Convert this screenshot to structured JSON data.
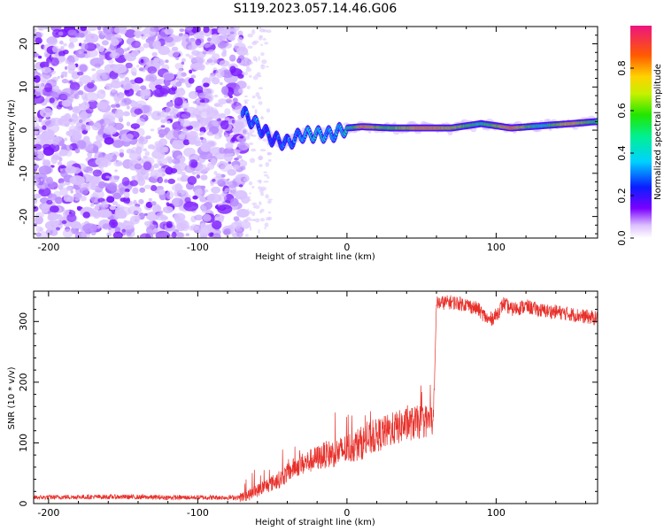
{
  "title": "S119.2023.057.14.46.G06",
  "chart_data": [
    {
      "type": "heatmap",
      "xlabel": "Height of straight line (km)",
      "ylabel": "Frequency (Hz)",
      "xlim": [
        -210,
        168
      ],
      "ylim": [
        -25,
        24
      ],
      "x_ticks": [
        -200,
        -100,
        0,
        100
      ],
      "x_tick_labels": [
        "-200",
        "-100",
        "0",
        "100"
      ],
      "y_ticks": [
        -20,
        -10,
        0,
        10,
        20
      ],
      "y_tick_labels": [
        "-20",
        "-10",
        "0",
        "10",
        "20"
      ],
      "colorbar": {
        "label": "Normalized spectral amplitude",
        "range": [
          0,
          1
        ],
        "ticks": [
          0.0,
          0.2,
          0.4,
          0.6,
          0.8
        ],
        "tick_labels": [
          "0.0",
          "0.2",
          "0.4",
          "0.6",
          "0.8"
        ]
      },
      "noise_region": {
        "x_range": [
          -210,
          -68
        ],
        "freq_range": [
          -25,
          24
        ],
        "amplitude": "low (0.0-0.1)"
      },
      "signal_track": [
        {
          "x": -70,
          "f": 4,
          "a": 0.35
        },
        {
          "x": -60,
          "f": 1,
          "a": 0.4
        },
        {
          "x": -50,
          "f": -2,
          "a": 0.3
        },
        {
          "x": -40,
          "f": -3,
          "a": 0.35
        },
        {
          "x": -30,
          "f": -1,
          "a": 0.45
        },
        {
          "x": -20,
          "f": -1,
          "a": 0.5
        },
        {
          "x": -10,
          "f": -1,
          "a": 0.45
        },
        {
          "x": 0,
          "f": 0.5,
          "a": 0.55
        },
        {
          "x": 10,
          "f": 0.8,
          "a": 0.95
        },
        {
          "x": 30,
          "f": 0.5,
          "a": 0.7
        },
        {
          "x": 50,
          "f": 0.5,
          "a": 0.98
        },
        {
          "x": 70,
          "f": 0.5,
          "a": 0.85
        },
        {
          "x": 90,
          "f": 1.5,
          "a": 0.6
        },
        {
          "x": 110,
          "f": 0.5,
          "a": 0.98
        },
        {
          "x": 130,
          "f": 1,
          "a": 0.55
        },
        {
          "x": 150,
          "f": 1.5,
          "a": 0.95
        },
        {
          "x": 168,
          "f": 2,
          "a": 0.6
        }
      ]
    },
    {
      "type": "line",
      "xlabel": "Height of straight line (km)",
      "ylabel": "SNR (10 * v/v)",
      "xlim": [
        -210,
        168
      ],
      "ylim": [
        0,
        350
      ],
      "x_ticks": [
        -200,
        -100,
        0,
        100
      ],
      "x_tick_labels": [
        "-200",
        "-100",
        "0",
        "100"
      ],
      "y_ticks": [
        0,
        100,
        200,
        300
      ],
      "y_tick_labels": [
        "0",
        "100",
        "200",
        "300"
      ],
      "series": [
        {
          "color": "#e8302a",
          "points": [
            [
              -210,
              10
            ],
            [
              -180,
              11
            ],
            [
              -150,
              11
            ],
            [
              -120,
              10
            ],
            [
              -90,
              10
            ],
            [
              -72,
              10
            ],
            [
              -65,
              15
            ],
            [
              -55,
              28
            ],
            [
              -45,
              40
            ],
            [
              -35,
              60
            ],
            [
              -25,
              70
            ],
            [
              -15,
              80
            ],
            [
              -5,
              85
            ],
            [
              0,
              90
            ],
            [
              10,
              100
            ],
            [
              20,
              112
            ],
            [
              30,
              122
            ],
            [
              40,
              130
            ],
            [
              50,
              135
            ],
            [
              58,
              138
            ],
            [
              60,
              330
            ],
            [
              70,
              332
            ],
            [
              80,
              328
            ],
            [
              88,
              320
            ],
            [
              95,
              302
            ],
            [
              100,
              310
            ],
            [
              105,
              330
            ],
            [
              110,
              320
            ],
            [
              120,
              325
            ],
            [
              130,
              318
            ],
            [
              140,
              316
            ],
            [
              150,
              312
            ],
            [
              160,
              308
            ],
            [
              168,
              305
            ]
          ]
        }
      ]
    }
  ]
}
